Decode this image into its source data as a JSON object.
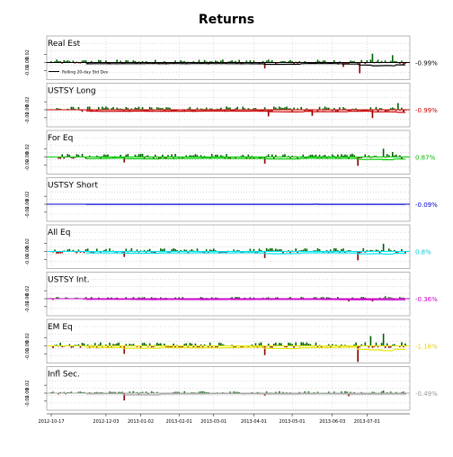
{
  "chart_data": {
    "type": "bar",
    "title": "Returns",
    "legend_label": "Rolling 20-day Std Dev",
    "y_tick_labels": [
      "0.02",
      "0.00",
      "-0.02"
    ],
    "x_tick_labels": [
      "2012-10-17",
      "2012-12-03",
      "2013-01-02",
      "2013-02-01",
      "2013-03-01",
      "2013-04-01",
      "2013-05-01",
      "2013-06-03",
      "2013-07-01"
    ],
    "x_tick_positions": [
      0,
      30,
      49,
      70,
      89,
      111,
      132,
      154,
      173
    ],
    "n_days": 195,
    "colors": {
      "positive": "#006400",
      "negative": "#8b0000",
      "grid": "#bbbbbb"
    },
    "series": [
      {
        "name": "Real Est",
        "line_color": "#000000",
        "right_label": "-0.99%",
        "label_color": "#000000",
        "amplitude": 0.8,
        "spikes": [
          [
            117,
            -1.2
          ],
          [
            169,
            -2.2
          ],
          [
            176,
            1.8
          ],
          [
            187,
            1.5
          ],
          [
            160,
            -0.9
          ]
        ]
      },
      {
        "name": "USTSY Long",
        "line_color": "#cc0000",
        "right_label": "-0.99%",
        "label_color": "#cc0000",
        "amplitude": 0.9,
        "spikes": [
          [
            119,
            -1.2
          ],
          [
            143,
            -1.1
          ],
          [
            176,
            -1.5
          ],
          [
            190,
            1.2
          ]
        ]
      },
      {
        "name": "For Eq",
        "line_color": "#00cc00",
        "right_label": "0.87%",
        "label_color": "#00bb00",
        "amplitude": 0.9,
        "spikes": [
          [
            40,
            -1.0
          ],
          [
            117,
            -1.2
          ],
          [
            168,
            -1.6
          ],
          [
            182,
            1.5
          ],
          [
            187,
            0.9
          ]
        ]
      },
      {
        "name": "USTSY Short",
        "line_color": "#0000cc",
        "right_label": "-0.09%",
        "label_color": "#0000cc",
        "amplitude": 0.04,
        "spikes": []
      },
      {
        "name": "All Eq",
        "line_color": "#00e5ee",
        "right_label": "0.8%",
        "label_color": "#00ccdd",
        "amplitude": 0.9,
        "spikes": [
          [
            40,
            -1.0
          ],
          [
            117,
            -1.2
          ],
          [
            168,
            -1.6
          ],
          [
            182,
            1.4
          ]
        ]
      },
      {
        "name": "USTSY Int.",
        "line_color": "#cc00cc",
        "right_label": "-0.36%",
        "label_color": "#cc00cc",
        "amplitude": 0.5,
        "spikes": [
          [
            163,
            -0.9
          ],
          [
            176,
            -0.9
          ],
          [
            183,
            0.8
          ]
        ]
      },
      {
        "name": "EM Eq",
        "line_color": "#e6e600",
        "right_label": "-1.16%",
        "label_color": "#e6d200",
        "amplitude": 1.0,
        "spikes": [
          [
            40,
            -1.3
          ],
          [
            117,
            -1.5
          ],
          [
            168,
            -2.6
          ],
          [
            182,
            2.0
          ],
          [
            175,
            1.6
          ]
        ]
      },
      {
        "name": "Infl Sec.",
        "line_color": "#aaaaaa",
        "right_label": "-0.49%",
        "label_color": "#999999",
        "amplitude": 0.5,
        "spikes": [
          [
            40,
            -2.4
          ],
          [
            117,
            -0.8
          ],
          [
            163,
            -1.0
          ],
          [
            182,
            0.8
          ]
        ]
      }
    ]
  }
}
